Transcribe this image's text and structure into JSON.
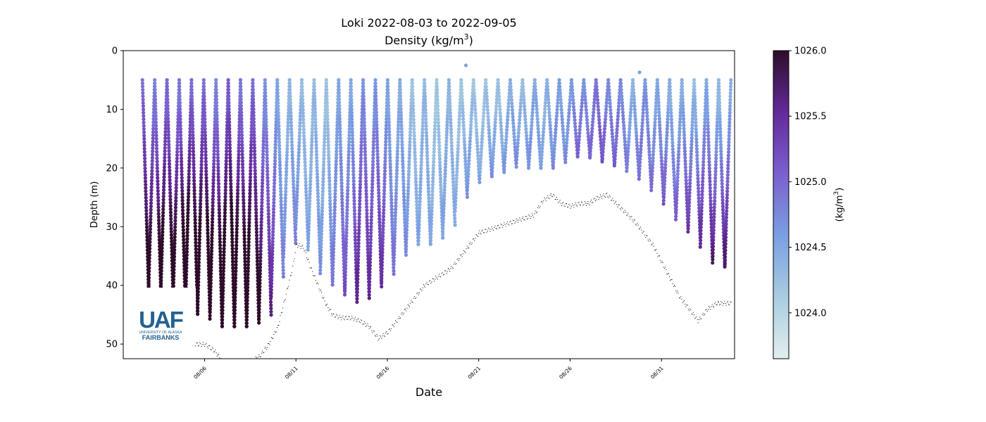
{
  "chart_data": {
    "type": "scatter",
    "title": "Loki 2022-08-03 to 2022-09-05",
    "subtitle_prefix": "Density (kg/m",
    "subtitle_sup": "3",
    "subtitle_suffix": ")",
    "xlabel": "Date",
    "ylabel": "Depth (m)",
    "x_tick_labels": [
      "08/06",
      "08/11",
      "08/16",
      "08/21",
      "08/26",
      "08/31"
    ],
    "x_tick_days": [
      6,
      11,
      16,
      21,
      26,
      31
    ],
    "xlim_days": [
      1.55,
      35.0
    ],
    "ylim": [
      52.5,
      0
    ],
    "y_ticks": [
      0,
      10,
      20,
      30,
      40,
      50
    ],
    "colorbar": {
      "label_prefix": "(kg/m",
      "label_sup": "3",
      "label_suffix": ")",
      "vmin": 1023.65,
      "vmax": 1026.0,
      "ticks": [
        1024.0,
        1024.5,
        1025.0,
        1025.5,
        1026.0
      ],
      "tick_labels": [
        "1024.0",
        "1024.5",
        "1025.0",
        "1025.5",
        "1026.0"
      ],
      "colormap": [
        "#e3eeee",
        "#a8cde0",
        "#7a9fe2",
        "#7a60cf",
        "#64299a",
        "#2e0d2a"
      ]
    },
    "profile_days": [
      2.6,
      34.8
    ],
    "profile_count": 96,
    "surface_depth": 5,
    "max_depth_profile": {
      "day": [
        2.6,
        4.0,
        5.0,
        5.5,
        6.0,
        6.8,
        7.5,
        8.5,
        9.5,
        10.0,
        10.5,
        10.8,
        11.1,
        11.5,
        12.0,
        12.5,
        13.2,
        14.0,
        14.6,
        15.2,
        16.0,
        16.8,
        17.5,
        18.5,
        19.5,
        20.2,
        21.0,
        22.0,
        22.8,
        23.3,
        23.8,
        24.4,
        25.0,
        25.6,
        26.3,
        27.0,
        28.0,
        29.0,
        30.0,
        31.0,
        32.0,
        33.0,
        33.8,
        34.8
      ],
      "depth": [
        40,
        41,
        44,
        45,
        44,
        47,
        47,
        47,
        45,
        40,
        35,
        33,
        30,
        32,
        35,
        38,
        40,
        42,
        43,
        41,
        39,
        35,
        33,
        33,
        30,
        25,
        22,
        21,
        20,
        19,
        20,
        20,
        20,
        19,
        18,
        18,
        19,
        20,
        22,
        25,
        29,
        32,
        36,
        37
      ]
    },
    "bottom_track": {
      "day": [
        5.0,
        5.5,
        6.0,
        6.5,
        7.0,
        7.5,
        8.0,
        8.5,
        9.0,
        9.5,
        10.0,
        10.4,
        10.8,
        11.0,
        11.4,
        11.8,
        12.2,
        12.6,
        13.0,
        13.5,
        14.0,
        14.5,
        15.0,
        15.5,
        16.0,
        16.5,
        17.0,
        17.5,
        18.0,
        18.5,
        19.0,
        19.5,
        20.0,
        20.5,
        21.0,
        21.5,
        22.0,
        22.5,
        23.0,
        23.5,
        24.0,
        24.5,
        25.0,
        25.5,
        26.0,
        26.5,
        27.0,
        27.5,
        28.0,
        28.5,
        29.0,
        29.5,
        30.0,
        30.5,
        31.0,
        31.5,
        32.0,
        32.5,
        33.0,
        33.5,
        34.0,
        34.8
      ],
      "depth": [
        49.5,
        50.0,
        50.0,
        51.0,
        53.0,
        55.0,
        54.0,
        53.0,
        52.0,
        50.0,
        47.0,
        42.0,
        37.0,
        33.0,
        33.5,
        37.0,
        40.0,
        43.0,
        45.0,
        45.5,
        45.5,
        46.0,
        47.0,
        49.0,
        48.0,
        46.0,
        44.0,
        42.0,
        40.0,
        39.0,
        38.0,
        37.0,
        35.0,
        33.0,
        31.0,
        30.5,
        30.0,
        29.5,
        29.0,
        28.5,
        28.0,
        25.5,
        24.5,
        26.0,
        26.5,
        26.0,
        26.0,
        25.0,
        24.5,
        26.0,
        27.5,
        29.0,
        31.0,
        33.0,
        36.0,
        39.0,
        42.0,
        44.0,
        46.0,
        44.0,
        43.0,
        43.0
      ]
    },
    "outlier_points": [
      {
        "day": 20.3,
        "depth": 2.5
      },
      {
        "day": 29.8,
        "depth": 3.7
      }
    ]
  },
  "logo": {
    "name": "University of Alaska Fairbanks",
    "mark": "UAF",
    "line1": "UNIVERSITY OF ALASKA",
    "line2": "FAIRBANKS",
    "color": "#236192"
  }
}
